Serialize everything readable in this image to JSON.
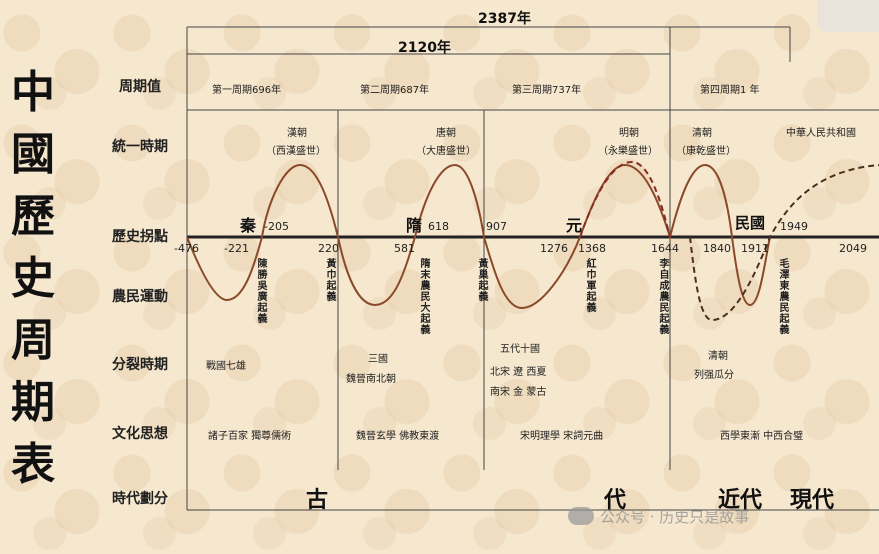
{
  "title_chars": [
    "中",
    "國",
    "歷",
    "史",
    "周",
    "期",
    "表"
  ],
  "spans": {
    "total": "2387年",
    "second": "2120年"
  },
  "row_labels": {
    "cycle": "周期值",
    "unify": "統一時期",
    "turning": "歷史拐點",
    "peasant": "農民運動",
    "split": "分裂時期",
    "culture": "文化思想",
    "era": "時代劃分"
  },
  "cycles": [
    "第一周期696年",
    "第二周期687年",
    "第三周期737年",
    "第四周期1 年"
  ],
  "unify": [
    {
      "name": "漢朝",
      "note": "（西漢盛世）"
    },
    {
      "name": "唐朝",
      "note": "（大唐盛世）"
    },
    {
      "name": "明朝",
      "note": "（永樂盛世）"
    },
    {
      "name": "清朝",
      "note": "（康乾盛世）"
    },
    {
      "name": "中華人民共和國",
      "note": ""
    }
  ],
  "dynasty_marks": {
    "qin": "秦",
    "sui": "隋",
    "yuan": "元",
    "minguo": "民國"
  },
  "axis_ticks": [
    "-476",
    "-221",
    "-205",
    "220",
    "581",
    "618",
    "907",
    "1276",
    "1368",
    "1644",
    "1840",
    "1911",
    "1949",
    "2049"
  ],
  "uprisings": [
    "陳勝吳廣起義",
    "黃巾起義",
    "隋末農民大起義",
    "黃巢起義",
    "紅巾軍起義",
    "李自成農民起義",
    "毛澤東農民起義"
  ],
  "split": {
    "s1": "戰國七雄",
    "s2a": "三國",
    "s2b": "魏晉南北朝",
    "s3a": "五代十國",
    "s3b": "北宋  遼  西夏",
    "s3c": "南宋  金  蒙古",
    "s4a": "清朝",
    "s4b": "列强瓜分"
  },
  "culture": [
    "諸子百家  獨尊儒術",
    "魏晉玄學  佛教東渡",
    "宋明理學  宋詞元曲",
    "西學東漸  中西合璧"
  ],
  "eras": {
    "gu": "古",
    "dai": "代",
    "jin": "近代",
    "xian": "現代"
  },
  "watermark": "公众号 · 历史只是故事",
  "colors": {
    "curve": "#8a4a2a",
    "axis": "#222222",
    "background": "#f6e7cf"
  }
}
